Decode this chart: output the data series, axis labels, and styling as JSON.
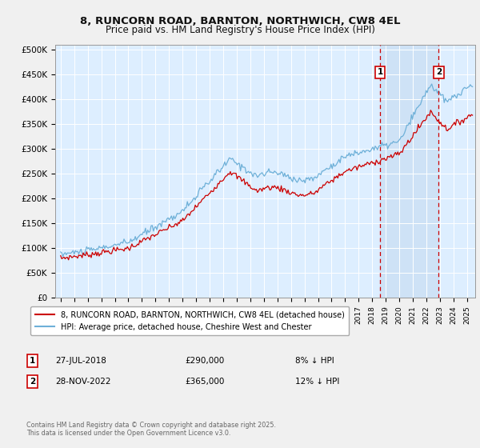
{
  "title": "8, RUNCORN ROAD, BARNTON, NORTHWICH, CW8 4EL",
  "subtitle": "Price paid vs. HM Land Registry's House Price Index (HPI)",
  "ylabel_ticks": [
    "£0",
    "£50K",
    "£100K",
    "£150K",
    "£200K",
    "£250K",
    "£300K",
    "£350K",
    "£400K",
    "£450K",
    "£500K"
  ],
  "ytick_values": [
    0,
    50000,
    100000,
    150000,
    200000,
    250000,
    300000,
    350000,
    400000,
    450000,
    500000
  ],
  "ylim": [
    0,
    510000
  ],
  "xlim_start": 1994.6,
  "xlim_end": 2025.6,
  "hpi_color": "#6eb0d8",
  "price_color": "#cc0000",
  "vline_color": "#cc0000",
  "bg_color": "#ddeeff",
  "grid_color": "#ffffff",
  "sale1_x": 2018.57,
  "sale2_x": 2022.91,
  "sale1_label": "1",
  "sale2_label": "2",
  "legend_line1": "8, RUNCORN ROAD, BARNTON, NORTHWICH, CW8 4EL (detached house)",
  "legend_line2": "HPI: Average price, detached house, Cheshire West and Chester",
  "sale1_date": "27-JUL-2018",
  "sale1_price": "£290,000",
  "sale1_pct": "8% ↓ HPI",
  "sale2_date": "28-NOV-2022",
  "sale2_price": "£365,000",
  "sale2_pct": "12% ↓ HPI",
  "copyright": "Contains HM Land Registry data © Crown copyright and database right 2025.\nThis data is licensed under the Open Government Licence v3.0.",
  "xtick_years": [
    1995,
    1996,
    1997,
    1998,
    1999,
    2000,
    2001,
    2002,
    2003,
    2004,
    2005,
    2006,
    2007,
    2008,
    2009,
    2010,
    2011,
    2012,
    2013,
    2014,
    2015,
    2016,
    2017,
    2018,
    2019,
    2020,
    2021,
    2022,
    2023,
    2024,
    2025
  ]
}
